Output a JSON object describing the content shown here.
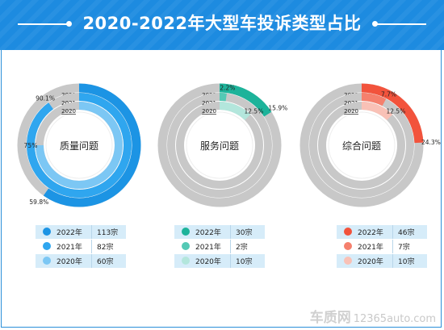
{
  "title": "2020-2022年大型车投诉类型占比",
  "watermark": {
    "brand": "车质网",
    "site": "12365auto.com"
  },
  "chart_data": [
    {
      "type": "donut",
      "name": "质量问题",
      "color_track": "#c8c8c8",
      "rings": [
        {
          "year": "2022",
          "label": "59.8%",
          "value": 59.8,
          "count": "113宗",
          "color": "#1c94e4"
        },
        {
          "year": "2021",
          "label": "90.1%",
          "value": 90.1,
          "count": "82宗",
          "color": "#2fa6ef"
        },
        {
          "year": "2020",
          "label": "75%",
          "value": 75.0,
          "count": "60宗",
          "color": "#7cc7f4"
        }
      ]
    },
    {
      "type": "donut",
      "name": "服务问题",
      "color_track": "#c8c8c8",
      "rings": [
        {
          "year": "2022",
          "label": "15.9%",
          "value": 15.9,
          "count": "30宗",
          "color": "#1db39a"
        },
        {
          "year": "2021",
          "label": "2.2%",
          "value": 2.2,
          "count": "2宗",
          "color": "#54c9b5"
        },
        {
          "year": "2020",
          "label": "12.5%",
          "value": 12.5,
          "count": "10宗",
          "color": "#b3e6dc"
        }
      ]
    },
    {
      "type": "donut",
      "name": "综合问题",
      "color_track": "#c8c8c8",
      "rings": [
        {
          "year": "2022",
          "label": "24.3%",
          "value": 24.3,
          "count": "46宗",
          "color": "#f2533c"
        },
        {
          "year": "2021",
          "label": "7.7%",
          "value": 7.7,
          "count": "7宗",
          "color": "#f5806d"
        },
        {
          "year": "2020",
          "label": "12.5%",
          "value": 12.5,
          "count": "10宗",
          "color": "#f9c1b6"
        }
      ]
    }
  ]
}
